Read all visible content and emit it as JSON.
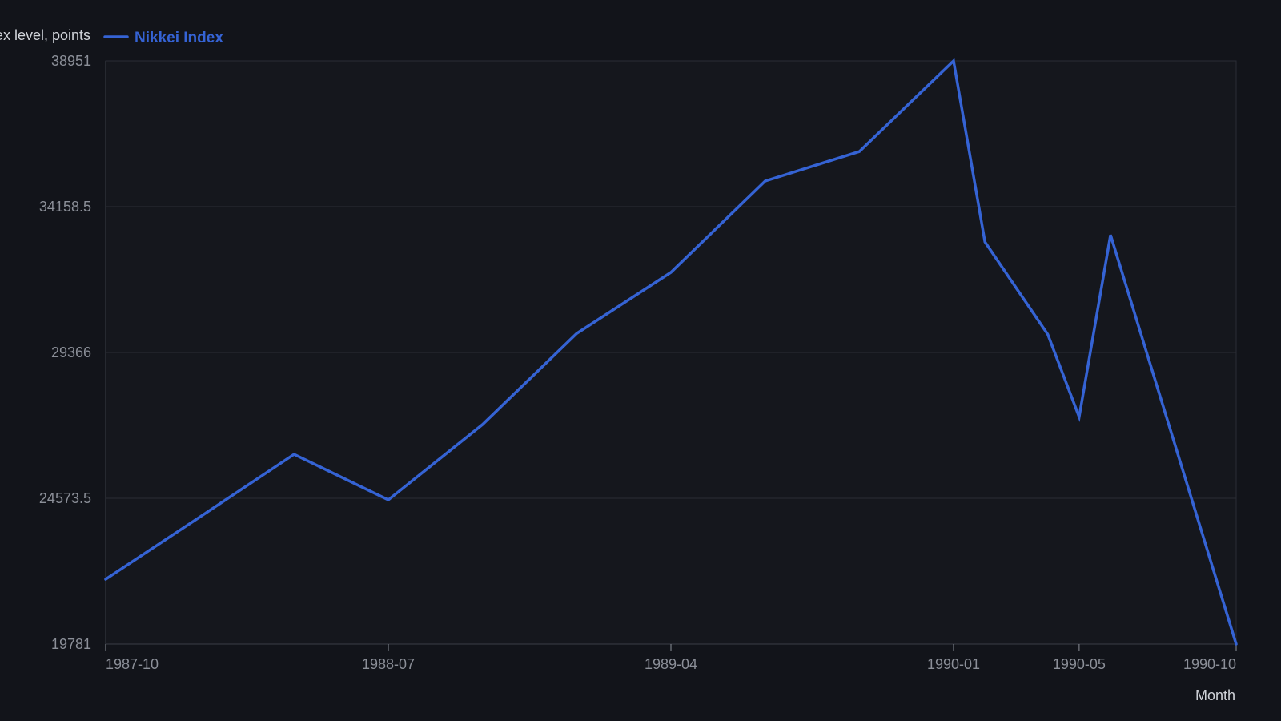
{
  "chart_data": {
    "type": "line",
    "xlabel": "Month",
    "ylabel": "Index level, points",
    "ylim": [
      19781,
      38951
    ],
    "y_ticks": [
      "38951",
      "34158.5",
      "29366",
      "24573.5",
      "19781"
    ],
    "x_ticks": [
      "1987-10",
      "1988-07",
      "1989-04",
      "1990-01",
      "1990-05",
      "1990-10"
    ],
    "grid": true,
    "legend_position": "top-left",
    "colors": {
      "background": "#12141a",
      "line": "#3563d4",
      "grid": "#2a2d35",
      "axis": "#3a3e47"
    },
    "series": [
      {
        "name": "Nikkei Index",
        "x": [
          "1987-10",
          "1988-01",
          "1988-04",
          "1988-07",
          "1988-10",
          "1989-01",
          "1989-04",
          "1989-07",
          "1989-10",
          "1990-01",
          "1990-02",
          "1990-04",
          "1990-05",
          "1990-06",
          "1990-10"
        ],
        "values": [
          21910,
          23960,
          26020,
          24520,
          27000,
          29990,
          32000,
          35000,
          35970,
          38951,
          33000,
          29960,
          27250,
          33230,
          19781
        ]
      }
    ]
  }
}
